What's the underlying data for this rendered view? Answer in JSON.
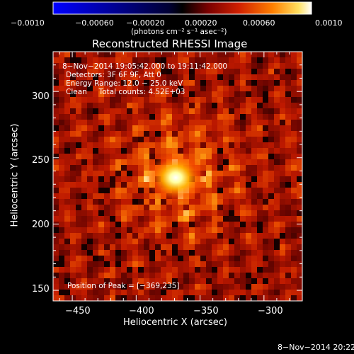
{
  "colorbar": {
    "ticks": [
      "−0.0010",
      "−0.00060",
      "−0.00020",
      "0.00020",
      "0.00060",
      "0.0010"
    ],
    "unit_label": "(photons cm⁻² s⁻¹ asec⁻²)",
    "colors": {
      "low": "#0000ff",
      "mid": "#000000",
      "high": "#ffffff"
    }
  },
  "plot": {
    "title": "Reconstructed RHESSI Image",
    "info_lines": [
      "8−Nov−2014 19:05:42.000 to 19:11:42.000",
      "Detectors: 3F 6F 9F, Att 0",
      "Energy Range: 12.0 − 25.0 keV",
      "Clean     Total counts: 4.52E+03"
    ],
    "peak_label": "Position of Peak = [−369,235]",
    "x_label": "Heliocentric X (arcsec)",
    "y_label": "Heliocentric Y (arcsec)",
    "x_ticks": [
      "−450",
      "−400",
      "−350",
      "−300"
    ],
    "y_ticks": [
      "150",
      "200",
      "250",
      "300"
    ],
    "x_range": [
      -465,
      -270
    ],
    "y_range": [
      142,
      330
    ],
    "peak": {
      "x": -369,
      "y": 235
    }
  },
  "footer": {
    "timestamp": "8−Nov−2014 20:22"
  }
}
